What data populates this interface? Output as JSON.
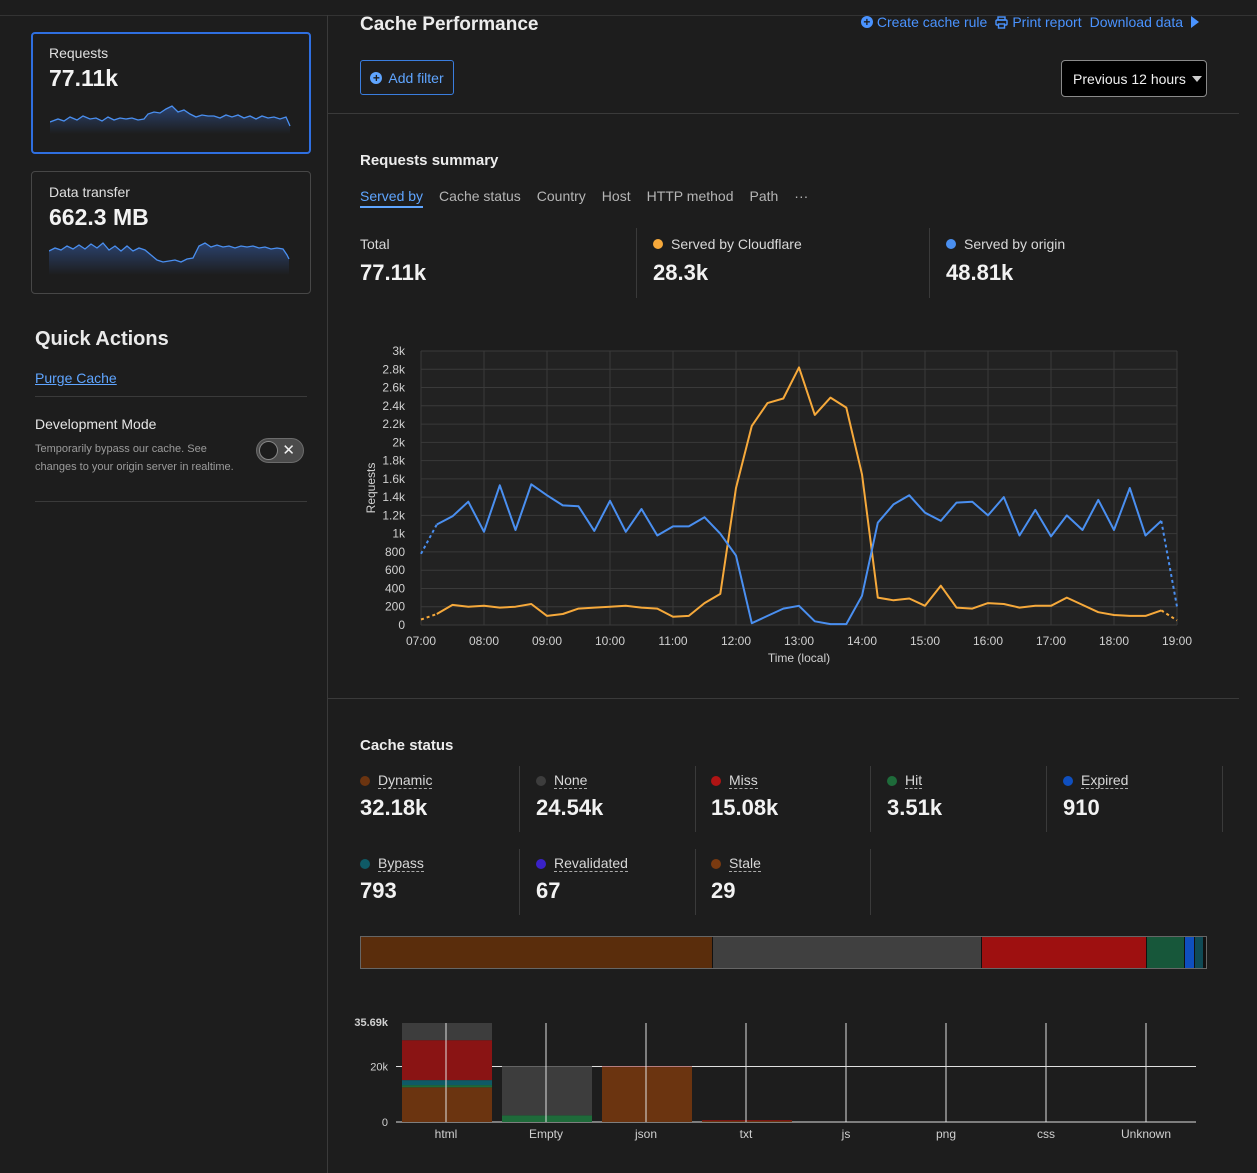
{
  "sidebar": {
    "cards": [
      {
        "label": "Requests",
        "value": "77.11k",
        "active": true
      },
      {
        "label": "Data transfer",
        "value": "662.3 MB",
        "active": false
      }
    ],
    "quick_actions_title": "Quick Actions",
    "purge_cache": "Purge Cache",
    "dev_mode": {
      "title": "Development Mode",
      "description": "Temporarily bypass our cache. See changes to your origin server in realtime.",
      "enabled": false,
      "toggle_glyph": "✕"
    }
  },
  "header": {
    "title": "Cache Performance",
    "actions": [
      {
        "label": "Create cache rule",
        "icon": "plus-circle-icon"
      },
      {
        "label": "Print report",
        "icon": "printer-icon"
      },
      {
        "label": "Download data",
        "icon": "download-icon"
      }
    ],
    "add_filter": "Add filter",
    "time_range": "Previous 12 hours"
  },
  "requests_summary": {
    "title": "Requests summary",
    "tabs": [
      "Served by",
      "Cache status",
      "Country",
      "Host",
      "HTTP method",
      "Path",
      "···"
    ],
    "active_tab": "Served by",
    "totals": [
      {
        "label": "Total",
        "value": "77.11k",
        "color": ""
      },
      {
        "label": "Served by Cloudflare",
        "value": "28.3k",
        "color": "#f6a93b"
      },
      {
        "label": "Served by origin",
        "value": "48.81k",
        "color": "#4a8ff0"
      }
    ]
  },
  "colors": {
    "accent": "#4a93ff",
    "cloudflare": "#f6a93b",
    "origin": "#4a8ff0",
    "card_active_border": "#2f6fe0"
  },
  "cache_status": {
    "title": "Cache status",
    "items": [
      {
        "label": "Dynamic",
        "value": "32.18k",
        "color": "#6b3410"
      },
      {
        "label": "None",
        "value": "24.54k",
        "color": "#3d3d3d"
      },
      {
        "label": "Miss",
        "value": "15.08k",
        "color": "#b01414"
      },
      {
        "label": "Hit",
        "value": "3.51k",
        "color": "#1e6b3a"
      },
      {
        "label": "Expired",
        "value": "910",
        "color": "#0f4fbf"
      },
      {
        "label": "Bypass",
        "value": "793",
        "color": "#0f5a66"
      },
      {
        "label": "Revalidated",
        "value": "67",
        "color": "#3a22c8"
      },
      {
        "label": "Stale",
        "value": "29",
        "color": "#7a3a10"
      }
    ],
    "bar_colors": [
      "#5a2d0c",
      "#404040",
      "#9e1010",
      "#17573a",
      "#0f4fbf",
      "#0f4a55",
      "#3a22c8",
      "#6a3310"
    ],
    "bar_values": [
      32180,
      24540,
      15080,
      3510,
      910,
      793,
      67,
      29
    ]
  },
  "chart_data": [
    {
      "type": "line",
      "title": "",
      "xlabel": "Time (local)",
      "ylabel": "Requests",
      "ylim": [
        0,
        3000
      ],
      "yticks": [
        "0",
        "200",
        "400",
        "600",
        "800",
        "1k",
        "1.2k",
        "1.4k",
        "1.6k",
        "1.8k",
        "2k",
        "2.2k",
        "2.4k",
        "2.6k",
        "2.8k",
        "3k"
      ],
      "xticks": [
        "07:00",
        "08:00",
        "09:00",
        "10:00",
        "11:00",
        "12:00",
        "13:00",
        "14:00",
        "15:00",
        "16:00",
        "17:00",
        "18:00",
        "19:00"
      ],
      "x_hours": [
        7,
        7.25,
        7.5,
        7.75,
        8,
        8.25,
        8.5,
        8.75,
        9,
        9.25,
        9.5,
        9.75,
        10,
        10.25,
        10.5,
        10.75,
        11,
        11.25,
        11.5,
        11.75,
        12,
        12.25,
        12.5,
        12.75,
        13,
        13.25,
        13.5,
        13.75,
        14,
        14.25,
        14.5,
        14.75,
        15,
        15.25,
        15.5,
        15.75,
        16,
        16.25,
        16.5,
        16.75,
        17,
        17.25,
        17.5,
        17.75,
        18,
        18.25,
        18.5,
        18.75,
        19
      ],
      "grid": true,
      "series": [
        {
          "name": "Served by Cloudflare",
          "color": "#f6a93b",
          "values": [
            60,
            120,
            220,
            200,
            210,
            190,
            200,
            230,
            100,
            120,
            180,
            190,
            200,
            210,
            190,
            180,
            90,
            100,
            240,
            340,
            1500,
            2180,
            2430,
            2480,
            2820,
            2300,
            2490,
            2380,
            1650,
            300,
            270,
            290,
            210,
            430,
            190,
            180,
            240,
            230,
            190,
            210,
            210,
            300,
            220,
            140,
            110,
            100,
            100,
            160,
            50
          ]
        },
        {
          "name": "Served by origin",
          "color": "#4a8ff0",
          "values": [
            780,
            1100,
            1190,
            1350,
            1020,
            1530,
            1040,
            1540,
            1420,
            1310,
            1300,
            1030,
            1360,
            1020,
            1270,
            980,
            1080,
            1080,
            1180,
            1000,
            760,
            20,
            100,
            180,
            210,
            40,
            10,
            10,
            320,
            1120,
            1320,
            1420,
            1230,
            1140,
            1340,
            1350,
            1200,
            1400,
            980,
            1260,
            970,
            1200,
            1040,
            1370,
            1040,
            1500,
            980,
            1140,
            200
          ]
        }
      ]
    },
    {
      "type": "bar",
      "title": "",
      "ymax_label": "35.69k",
      "yticks": [
        "0",
        "20k"
      ],
      "ylim": [
        0,
        35690
      ],
      "categories": [
        "html",
        "Empty",
        "json",
        "txt",
        "js",
        "png",
        "css",
        "Unknown"
      ],
      "series": [
        {
          "name": "Dynamic",
          "color": "#6b3410",
          "values": [
            12500,
            0,
            19800,
            400,
            0,
            0,
            0,
            0
          ]
        },
        {
          "name": "Hit",
          "color": "#1e6b3a",
          "values": [
            800,
            2400,
            0,
            0,
            0,
            0,
            0,
            0
          ]
        },
        {
          "name": "Bypass",
          "color": "#0f5a66",
          "values": [
            1800,
            0,
            0,
            0,
            0,
            0,
            0,
            0
          ]
        },
        {
          "name": "Miss",
          "color": "#8a1414",
          "values": [
            14400,
            0,
            200,
            300,
            0,
            0,
            0,
            0
          ]
        },
        {
          "name": "None",
          "color": "#3d3d3d",
          "values": [
            6190,
            17700,
            0,
            0,
            0,
            0,
            0,
            0
          ]
        }
      ]
    }
  ]
}
